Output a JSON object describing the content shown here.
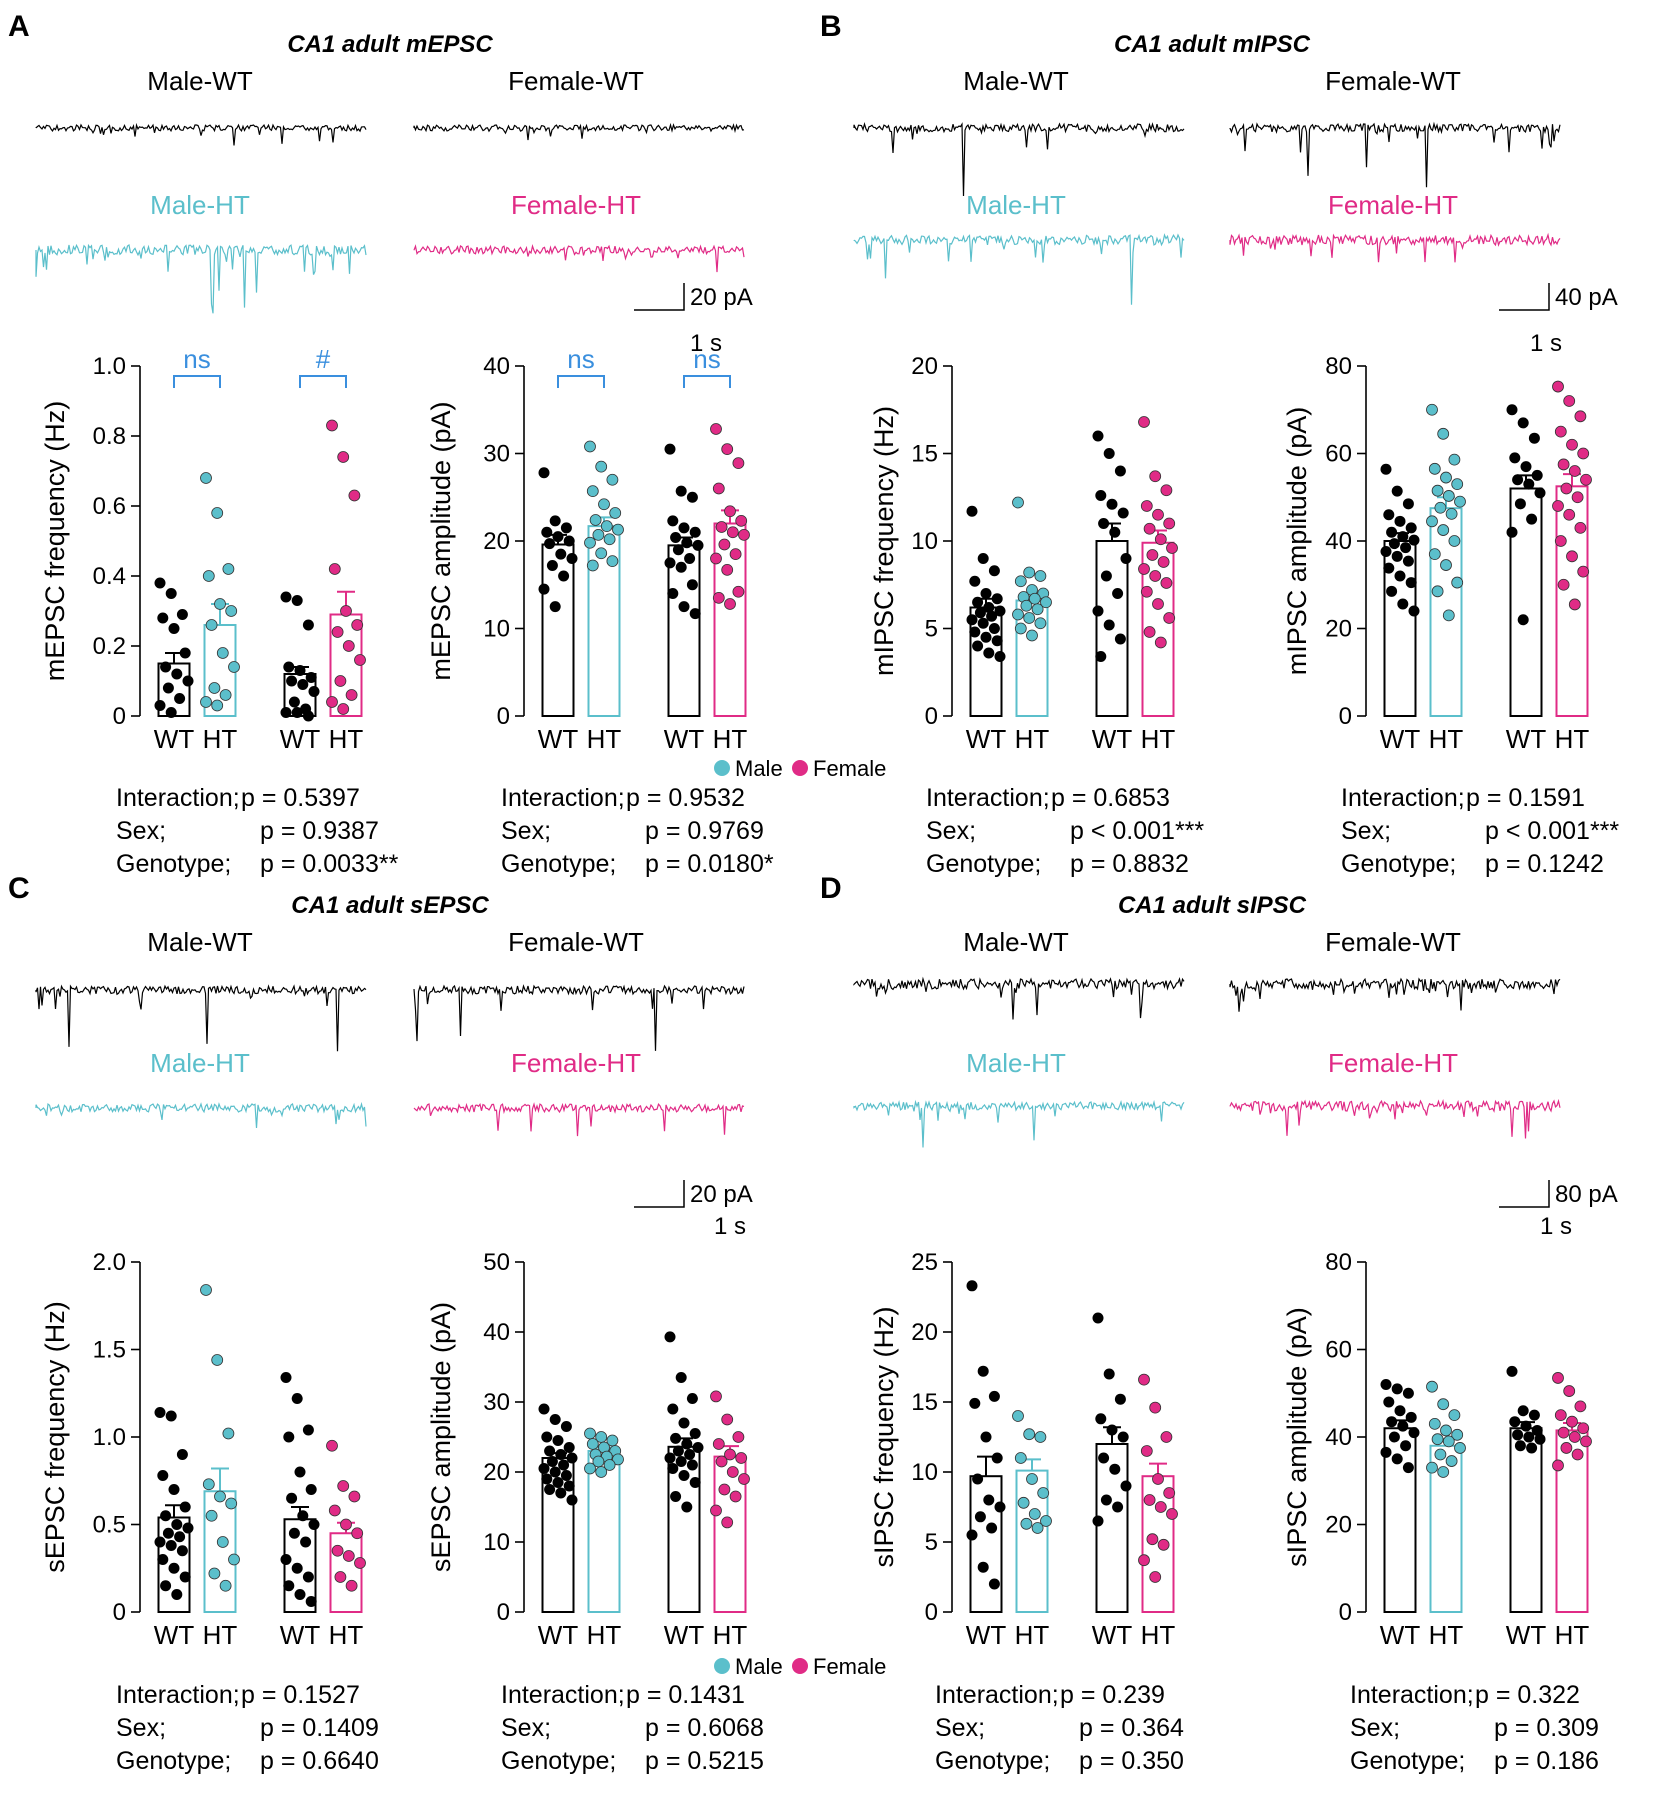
{
  "colors": {
    "wt": "#000000",
    "male": "#5bbfcb",
    "female": "#e02b86",
    "sig": "#3a8fde"
  },
  "legend": {
    "male": "Male",
    "female": "Female"
  },
  "chart_data": [
    {
      "type": "bar",
      "panel": "A",
      "title": "CA1 adult mEPSC",
      "ylabel": "mEPSC frequency (Hz)",
      "ylim": [
        0,
        1.0
      ],
      "yticks": [
        "0",
        "0.2",
        "0.4",
        "0.6",
        "0.8",
        "1.0"
      ],
      "ytickvals": [
        0,
        0.2,
        0.4,
        0.6,
        0.8,
        1.0
      ],
      "categories": [
        "WT",
        "HT",
        "WT",
        "HT"
      ],
      "groups": [
        "Male-WT",
        "Male-HT",
        "Female-WT",
        "Female-HT"
      ],
      "values": [
        0.15,
        0.26,
        0.12,
        0.29
      ],
      "sem": [
        0.03,
        0.06,
        0.02,
        0.065
      ],
      "points": [
        [
          0.38,
          0.35,
          0.29,
          0.28,
          0.25,
          0.18,
          0.14,
          0.12,
          0.1,
          0.08,
          0.05,
          0.03,
          0.01
        ],
        [
          0.68,
          0.58,
          0.42,
          0.4,
          0.32,
          0.3,
          0.26,
          0.18,
          0.14,
          0.08,
          0.06,
          0.04,
          0.03
        ],
        [
          0.34,
          0.33,
          0.26,
          0.14,
          0.13,
          0.11,
          0.1,
          0.09,
          0.07,
          0.04,
          0.02,
          0.01,
          0.01,
          0.0
        ],
        [
          0.83,
          0.74,
          0.63,
          0.42,
          0.3,
          0.26,
          0.24,
          0.2,
          0.16,
          0.1,
          0.06,
          0.04,
          0.02
        ]
      ],
      "brackets": [
        "ns",
        "#"
      ],
      "stats": [
        {
          "label": "Interaction;",
          "value": "p = 0.5397"
        },
        {
          "label": "Sex;",
          "value": "p = 0.9387"
        },
        {
          "label": "Genotype;",
          "value": "p = 0.0033**"
        }
      ]
    },
    {
      "type": "bar",
      "panel": "A",
      "ylabel": "mEPSC amplitude (pA)",
      "ylim": [
        0,
        40
      ],
      "yticks": [
        "0",
        "10",
        "20",
        "30",
        "40"
      ],
      "ytickvals": [
        0,
        10,
        20,
        30,
        40
      ],
      "categories": [
        "WT",
        "HT",
        "WT",
        "HT"
      ],
      "values": [
        19.6,
        21.7,
        19.5,
        22.0
      ],
      "sem": [
        1.1,
        1.0,
        0.9,
        1.5
      ],
      "points": [
        [
          27.8,
          22.3,
          21.5,
          21.0,
          20.5,
          20.0,
          19.7,
          18.5,
          18.0,
          17.2,
          16.0,
          14.5,
          12.5
        ],
        [
          30.8,
          28.5,
          27.0,
          25.7,
          24.2,
          23.2,
          22.4,
          21.7,
          21.3,
          20.7,
          20.2,
          19.8,
          18.6,
          17.7,
          17.2
        ],
        [
          30.5,
          25.7,
          25.0,
          22.3,
          21.5,
          21.0,
          20.4,
          19.8,
          19.5,
          19.0,
          18.0,
          17.5,
          17.0,
          15.0,
          14.0,
          12.5,
          11.7
        ],
        [
          32.8,
          30.5,
          28.9,
          26.0,
          23.4,
          22.3,
          21.6,
          21.0,
          20.7,
          19.6,
          18.5,
          18.0,
          16.7,
          14.2,
          13.5,
          12.8
        ]
      ],
      "brackets": [
        "ns",
        "ns"
      ],
      "stats": [
        {
          "label": "Interaction;",
          "value": "p = 0.9532"
        },
        {
          "label": "Sex;",
          "value": "p = 0.9769"
        },
        {
          "label": "Genotype;",
          "value": "p = 0.0180*"
        }
      ]
    },
    {
      "type": "bar",
      "panel": "B",
      "title": "CA1 adult mIPSC",
      "ylabel": "mIPSC frequency (Hz)",
      "ylim": [
        0,
        20
      ],
      "yticks": [
        "0",
        "5",
        "10",
        "15",
        "20"
      ],
      "ytickvals": [
        0,
        5,
        10,
        15,
        20
      ],
      "categories": [
        "WT",
        "HT",
        "WT",
        "HT"
      ],
      "values": [
        6.2,
        6.6,
        10.0,
        9.9
      ],
      "sem": [
        0.5,
        0.4,
        1.0,
        0.7
      ],
      "points": [
        [
          11.7,
          9.0,
          8.3,
          7.7,
          7.0,
          6.7,
          6.5,
          6.2,
          6.0,
          5.9,
          5.7,
          5.5,
          5.3,
          5.0,
          4.8,
          4.5,
          4.3,
          4.0,
          3.6,
          3.4
        ],
        [
          12.2,
          8.2,
          8.0,
          7.7,
          7.2,
          7.0,
          6.8,
          6.7,
          6.5,
          6.3,
          6.1,
          5.8,
          5.6,
          5.3,
          5.0,
          4.6
        ],
        [
          16.0,
          15.0,
          14.0,
          12.6,
          12.1,
          11.6,
          11.0,
          10.5,
          9.0,
          8.0,
          7.0,
          6.0,
          5.2,
          4.4,
          3.4
        ],
        [
          16.8,
          13.7,
          12.9,
          12.0,
          11.5,
          11.0,
          10.7,
          10.1,
          9.6,
          9.2,
          8.8,
          8.4,
          8.0,
          7.6,
          7.1,
          6.4,
          5.6,
          4.8,
          4.2
        ]
      ],
      "stats": [
        {
          "label": "Interaction;",
          "value": "p = 0.6853"
        },
        {
          "label": "Sex;",
          "value": "p < 0.001***"
        },
        {
          "label": "Genotype;",
          "value": "p = 0.8832"
        }
      ]
    },
    {
      "type": "bar",
      "panel": "B",
      "ylabel": "mIPSC amplitude (pA)",
      "ylim": [
        0,
        80
      ],
      "yticks": [
        "0",
        "20",
        "40",
        "60",
        "80"
      ],
      "ytickvals": [
        0,
        20,
        40,
        60,
        80
      ],
      "categories": [
        "WT",
        "HT",
        "WT",
        "HT"
      ],
      "values": [
        40,
        47.5,
        52,
        52.5
      ],
      "sem": [
        1.8,
        2.5,
        3.0,
        2.8
      ],
      "points": [
        [
          56.4,
          51.4,
          48.5,
          46.0,
          44.5,
          43.0,
          42.0,
          41.0,
          40.2,
          39.4,
          38.5,
          37.6,
          36.5,
          35.4,
          33.8,
          32.0,
          30.5,
          28.5,
          25.6,
          24.0
        ],
        [
          70.0,
          64.5,
          58.6,
          56.5,
          54.5,
          53.0,
          51.5,
          50.3,
          49.0,
          47.6,
          46.2,
          44.5,
          42.5,
          40.0,
          37.0,
          34.5,
          30.5,
          28.5,
          23.0
        ],
        [
          70.0,
          67.0,
          63.5,
          59.0,
          57.0,
          55.0,
          54.0,
          53.0,
          51.0,
          48.5,
          45.0,
          42.0,
          22.0
        ],
        [
          75.3,
          72.0,
          68.5,
          65.0,
          62.0,
          60.0,
          57.5,
          56.0,
          54.0,
          52.0,
          50.0,
          48.0,
          46.0,
          43.0,
          40.0,
          36.5,
          33.0,
          30.0,
          25.5
        ]
      ],
      "stats": [
        {
          "label": "Interaction;",
          "value": "p = 0.1591"
        },
        {
          "label": "Sex;",
          "value": "p < 0.001***"
        },
        {
          "label": "Genotype;",
          "value": "p = 0.1242"
        }
      ]
    },
    {
      "type": "bar",
      "panel": "C",
      "title": "CA1 adult sEPSC",
      "ylabel": "sEPSC frequency (Hz)",
      "ylim": [
        0,
        2.0
      ],
      "yticks": [
        "0",
        "0.5",
        "1.0",
        "1.5",
        "2.0"
      ],
      "ytickvals": [
        0,
        0.5,
        1.0,
        1.5,
        2.0
      ],
      "categories": [
        "WT",
        "HT",
        "WT",
        "HT"
      ],
      "values": [
        0.54,
        0.69,
        0.53,
        0.45
      ],
      "sem": [
        0.07,
        0.13,
        0.07,
        0.06
      ],
      "points": [
        [
          1.14,
          1.12,
          0.9,
          0.78,
          0.7,
          0.6,
          0.55,
          0.5,
          0.48,
          0.45,
          0.43,
          0.4,
          0.38,
          0.35,
          0.3,
          0.25,
          0.2,
          0.15,
          0.1
        ],
        [
          1.84,
          1.44,
          1.02,
          0.73,
          0.66,
          0.62,
          0.55,
          0.4,
          0.3,
          0.22,
          0.15
        ],
        [
          1.34,
          1.22,
          1.04,
          1.0,
          0.8,
          0.7,
          0.65,
          0.55,
          0.5,
          0.45,
          0.4,
          0.3,
          0.25,
          0.2,
          0.15,
          0.1,
          0.06
        ],
        [
          0.95,
          0.72,
          0.66,
          0.58,
          0.5,
          0.45,
          0.35,
          0.32,
          0.28,
          0.2,
          0.15
        ]
      ],
      "stats": [
        {
          "label": "Interaction;",
          "value": "p = 0.1527"
        },
        {
          "label": "Sex;",
          "value": "p = 0.1409"
        },
        {
          "label": "Genotype;",
          "value": "p = 0.6640"
        }
      ]
    },
    {
      "type": "bar",
      "panel": "C",
      "ylabel": "sEPSC amplitude (pA)",
      "ylim": [
        0,
        50
      ],
      "yticks": [
        "0",
        "10",
        "20",
        "30",
        "40",
        "50"
      ],
      "ytickvals": [
        0,
        10,
        20,
        30,
        40,
        50
      ],
      "categories": [
        "WT",
        "HT",
        "WT",
        "HT"
      ],
      "values": [
        22.0,
        23.0,
        23.6,
        22.2
      ],
      "sem": [
        0.7,
        0.5,
        1.2,
        1.5
      ],
      "points": [
        [
          29.0,
          27.5,
          26.5,
          25.0,
          24.5,
          23.5,
          23.0,
          22.5,
          22.0,
          21.5,
          21.0,
          20.5,
          20.0,
          19.5,
          19.0,
          18.5,
          18.0,
          17.5,
          17.0,
          16.0
        ],
        [
          25.5,
          25.0,
          24.5,
          24.0,
          23.5,
          23.0,
          22.5,
          22.2,
          21.8,
          21.5,
          21.0,
          20.5,
          20.0
        ],
        [
          39.3,
          33.5,
          30.5,
          29.0,
          27.0,
          25.5,
          24.8,
          24.0,
          23.5,
          23.0,
          22.5,
          22.0,
          21.5,
          21.0,
          20.5,
          19.5,
          18.5,
          16.5,
          15.0
        ],
        [
          30.8,
          27.5,
          25.0,
          24.0,
          22.5,
          22.0,
          21.5,
          20.0,
          19.0,
          17.5,
          16.5,
          14.5,
          12.8
        ]
      ],
      "stats": [
        {
          "label": "Interaction;",
          "value": "p = 0.1431"
        },
        {
          "label": "Sex;",
          "value": "p = 0.6068"
        },
        {
          "label": "Genotype;",
          "value": "p = 0.5215"
        }
      ]
    },
    {
      "type": "bar",
      "panel": "D",
      "title": "CA1 adult sIPSC",
      "ylabel": "sIPSC frequency (Hz)",
      "ylim": [
        0,
        25
      ],
      "yticks": [
        "0",
        "5",
        "10",
        "15",
        "20",
        "25"
      ],
      "ytickvals": [
        0,
        5,
        10,
        15,
        20,
        25
      ],
      "categories": [
        "WT",
        "HT",
        "WT",
        "HT"
      ],
      "values": [
        9.7,
        10.1,
        12.0,
        9.7
      ],
      "sem": [
        1.4,
        0.8,
        1.2,
        0.9
      ],
      "points": [
        [
          23.3,
          17.2,
          15.4,
          14.9,
          12.5,
          11.0,
          9.5,
          8.0,
          7.5,
          6.8,
          6.0,
          5.5,
          3.2,
          2.0
        ],
        [
          14.0,
          12.7,
          12.5,
          11.0,
          9.5,
          8.5,
          7.8,
          7.0,
          6.5,
          6.3,
          6.0
        ],
        [
          21.0,
          17.0,
          15.2,
          13.8,
          13.0,
          12.5,
          11.0,
          10.2,
          9.0,
          8.0,
          7.5,
          6.5
        ],
        [
          16.6,
          14.6,
          12.5,
          11.5,
          9.5,
          8.5,
          8.0,
          7.5,
          7.0,
          5.2,
          4.8,
          3.7,
          2.5
        ]
      ],
      "stats": [
        {
          "label": "Interaction;",
          "value": "p = 0.239"
        },
        {
          "label": "Sex;",
          "value": "p = 0.364"
        },
        {
          "label": "Genotype;",
          "value": "p = 0.350"
        }
      ]
    },
    {
      "type": "bar",
      "panel": "D",
      "ylabel": "sIPSC amplitude (pA)",
      "ylim": [
        0,
        80
      ],
      "yticks": [
        "0",
        "20",
        "40",
        "60",
        "80"
      ],
      "ytickvals": [
        0,
        20,
        40,
        60,
        80
      ],
      "categories": [
        "WT",
        "HT",
        "WT",
        "HT"
      ],
      "values": [
        42,
        38,
        42,
        41.5
      ],
      "sem": [
        1.8,
        1.5,
        1.4,
        1.7
      ],
      "points": [
        [
          52.0,
          51.0,
          50.0,
          48.0,
          46.0,
          44.5,
          43.5,
          42.5,
          41.0,
          40.0,
          38.0,
          36.5,
          35.0,
          33.0
        ],
        [
          51.5,
          47.5,
          45.0,
          43.0,
          41.5,
          40.5,
          39.5,
          39.0,
          37.5,
          36.0,
          34.5,
          33.0,
          32.0
        ],
        [
          55.0,
          46.0,
          45.0,
          43.5,
          42.5,
          41.5,
          40.5,
          40.0,
          39.5,
          38.0,
          37.5
        ],
        [
          53.5,
          50.5,
          47.0,
          45.0,
          43.5,
          42.0,
          41.0,
          40.0,
          39.0,
          37.5,
          36.0,
          33.5
        ]
      ],
      "stats": [
        {
          "label": "Interaction;",
          "value": "p = 0.322"
        },
        {
          "label": "Sex;",
          "value": "p = 0.309"
        },
        {
          "label": "Genotype;",
          "value": "p = 0.186"
        }
      ]
    }
  ],
  "panels": [
    {
      "letter": "A",
      "title": "CA1 adult mEPSC",
      "trace_labels": [
        "Male-WT",
        "Female-WT",
        "Male-HT",
        "Female-HT"
      ],
      "scale_y": "20 pA",
      "scale_x": "1 s"
    },
    {
      "letter": "B",
      "title": "CA1 adult mIPSC",
      "trace_labels": [
        "Male-WT",
        "Female-WT",
        "Male-HT",
        "Female-HT"
      ],
      "scale_y": "40 pA",
      "scale_x": "1 s"
    },
    {
      "letter": "C",
      "title": "CA1 adult sEPSC",
      "trace_labels": [
        "Male-WT",
        "Female-WT",
        "Male-HT",
        "Female-HT"
      ],
      "scale_y": "20 pA",
      "scale_x": "1 s"
    },
    {
      "letter": "D",
      "title": "CA1 adult sIPSC",
      "trace_labels": [
        "Male-WT",
        "Female-WT",
        "Male-HT",
        "Female-HT"
      ],
      "scale_y": "80 pA",
      "scale_x": "1 s"
    }
  ]
}
